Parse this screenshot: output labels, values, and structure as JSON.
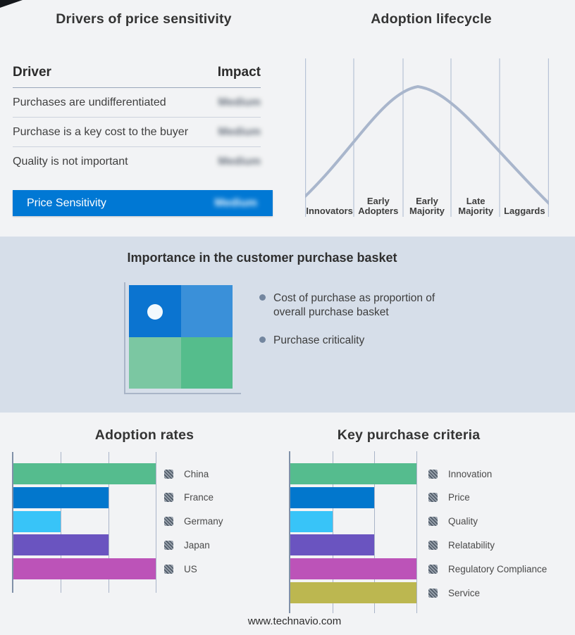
{
  "page": {
    "footer_url": "www.technavio.com"
  },
  "colors": {
    "page_bg": "#f2f3f5",
    "band_bg": "#d6dee9",
    "accent_blue": "#0078d4",
    "curve": "#a9b6cc",
    "bar_axis": "#8090a8",
    "bar_gridline": "#a9b4c8",
    "bullet": "#73869f"
  },
  "drivers_panel": {
    "title": "Drivers of price sensitivity",
    "col_driver": "Driver",
    "col_impact": "Impact",
    "rows": [
      {
        "driver": "Purchases are undifferentiated",
        "impact": "Medium"
      },
      {
        "driver": "Purchase is a key cost to the buyer",
        "impact": "Medium"
      },
      {
        "driver": "Quality is not important",
        "impact": "Medium"
      }
    ],
    "highlight_row": {
      "label": "Price Sensitivity",
      "impact": "Medium",
      "color": "#0078d4"
    },
    "impact_values_blurred": true
  },
  "basket_panel": {
    "title": "Importance in the customer purchase basket",
    "bullets": [
      "Cost of purchase as proportion of overall purchase basket",
      "Purchase criticality"
    ],
    "quadrant_colors": {
      "top_left": "#0b74d0",
      "top_right": "#3a90d9",
      "bottom_left": "#7bc7a2",
      "bottom_right": "#55bd8c"
    },
    "marker_position": "top-left quadrant"
  },
  "chart_data": [
    {
      "type": "line",
      "title": "Adoption lifecycle",
      "x_categories": [
        "Innovators",
        "Early Adopters",
        "Early Majority",
        "Late Majority",
        "Laggards"
      ],
      "curve_shape": "bell curve peaking near Early Majority",
      "points_stage_units": [
        [
          0,
          0.13
        ],
        [
          1,
          0.5
        ],
        [
          2,
          0.78
        ],
        [
          2.38,
          0.83
        ],
        [
          3,
          0.73
        ],
        [
          4,
          0.44
        ],
        [
          5,
          0.09
        ]
      ],
      "y_axis": "unlabeled adoption level",
      "grid": "vertical stage-boundary lines only",
      "legend": "none"
    },
    {
      "type": "bar",
      "orientation": "horizontal",
      "title": "Adoption rates",
      "categories": [
        "China",
        "France",
        "Germany",
        "Japan",
        "US"
      ],
      "values": [
        3,
        2,
        1,
        2,
        3
      ],
      "value_note": "no numeric axis labels; values in gridline units, max 3",
      "xlim": [
        0,
        3
      ],
      "colors": [
        "#55bc8e",
        "#0277cd",
        "#38c4f8",
        "#6a54c0",
        "#bc53b8"
      ],
      "legend_position": "right",
      "grid": "vertical gridlines at 1, 2, 3 units"
    },
    {
      "type": "bar",
      "orientation": "horizontal",
      "title": "Key purchase criteria",
      "categories": [
        "Innovation",
        "Price",
        "Quality",
        "Relatability",
        "Regulatory Compliance",
        "Service"
      ],
      "values": [
        3,
        2,
        1,
        2,
        3,
        3
      ],
      "value_note": "no numeric axis labels; values in gridline units, max 3",
      "xlim": [
        0,
        3
      ],
      "colors": [
        "#55bc8e",
        "#0277cd",
        "#38c4f8",
        "#6a54c0",
        "#bc53b8",
        "#bcb750"
      ],
      "legend_position": "right",
      "grid": "vertical gridlines at 1, 2, 3 units"
    }
  ]
}
